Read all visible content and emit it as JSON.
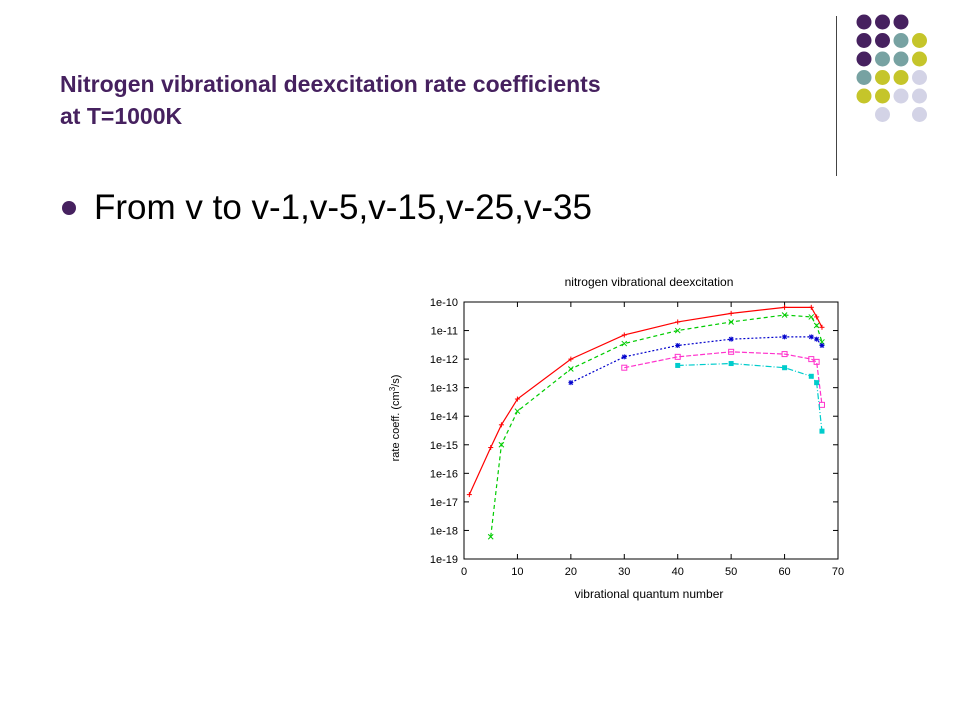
{
  "slide": {
    "title_line1": "Nitrogen vibrational deexcitation rate coefficients",
    "title_line2": "at T=1000K",
    "bullet": "From v to v-1,v-5,v-15,v-25,v-35",
    "colors": {
      "title": "#46215f",
      "purple": "#46215f",
      "teal": "#77a2a2",
      "olive": "#c5c52a",
      "lavender": "#d3d3e6"
    }
  },
  "decor_dots": [
    [
      "purple",
      "purple",
      "purple",
      null
    ],
    [
      "purple",
      "purple",
      "teal",
      "olive"
    ],
    [
      "purple",
      "teal",
      "teal",
      "olive"
    ],
    [
      "teal",
      "olive",
      "olive",
      "lavender"
    ],
    [
      "olive",
      "olive",
      "lavender",
      "lavender"
    ],
    [
      null,
      "lavender",
      null,
      "lavender"
    ]
  ],
  "chart_data": {
    "type": "line",
    "title": "nitrogen vibrational deexcitation",
    "xlabel": "vibrational quantum number",
    "ylabel_main": "rate coeff. (cm",
    "ylabel_sup": "3",
    "ylabel_end": "/s)",
    "xlim": [
      0,
      70
    ],
    "ylim_exp": [
      -19,
      -10
    ],
    "yscale": "log",
    "x_ticks": [
      "0",
      "10",
      "20",
      "30",
      "40",
      "50",
      "60",
      "70"
    ],
    "y_ticks": [
      "1e-10",
      "1e-11",
      "1e-12",
      "1e-13",
      "1e-14",
      "1e-15",
      "1e-16",
      "1e-17",
      "1e-18",
      "1e-19"
    ],
    "series": [
      {
        "color": "#ff0000",
        "dash": "",
        "marker": "+",
        "x": [
          1,
          5,
          7,
          10,
          20,
          30,
          40,
          50,
          60,
          65,
          66,
          67
        ],
        "y": [
          1.8e-17,
          8e-16,
          5e-15,
          4e-14,
          1e-12,
          7e-12,
          2e-11,
          4e-11,
          6.5e-11,
          6.5e-11,
          3e-11,
          1.3e-11
        ]
      },
      {
        "color": "#00cc00",
        "dash": "4,3",
        "marker": "x",
        "x": [
          5,
          7,
          10,
          20,
          30,
          40,
          50,
          60,
          65,
          66,
          67
        ],
        "y": [
          6e-19,
          1e-15,
          1.5e-14,
          4.5e-13,
          3.5e-12,
          1e-11,
          2e-11,
          3.5e-11,
          3e-11,
          1.5e-11,
          4e-12
        ]
      },
      {
        "color": "#0000cc",
        "dash": "2,2",
        "marker": "*",
        "x": [
          20,
          30,
          40,
          50,
          60,
          65,
          66,
          67
        ],
        "y": [
          1.5e-13,
          1.2e-12,
          3e-12,
          5e-12,
          6e-12,
          6e-12,
          5e-12,
          3e-12
        ]
      },
      {
        "color": "#ff33cc",
        "dash": "5,2",
        "marker": "square",
        "x": [
          30,
          40,
          50,
          60,
          65,
          66,
          67
        ],
        "y": [
          5e-13,
          1.2e-12,
          1.8e-12,
          1.5e-12,
          1e-12,
          8e-13,
          2.5e-14
        ]
      },
      {
        "color": "#00cccc",
        "dash": "6,2,1,2",
        "marker": "filled-square",
        "x": [
          40,
          50,
          60,
          65,
          66,
          67
        ],
        "y": [
          6e-13,
          7e-13,
          5e-13,
          2.5e-13,
          1.5e-13,
          3e-15
        ]
      }
    ]
  }
}
